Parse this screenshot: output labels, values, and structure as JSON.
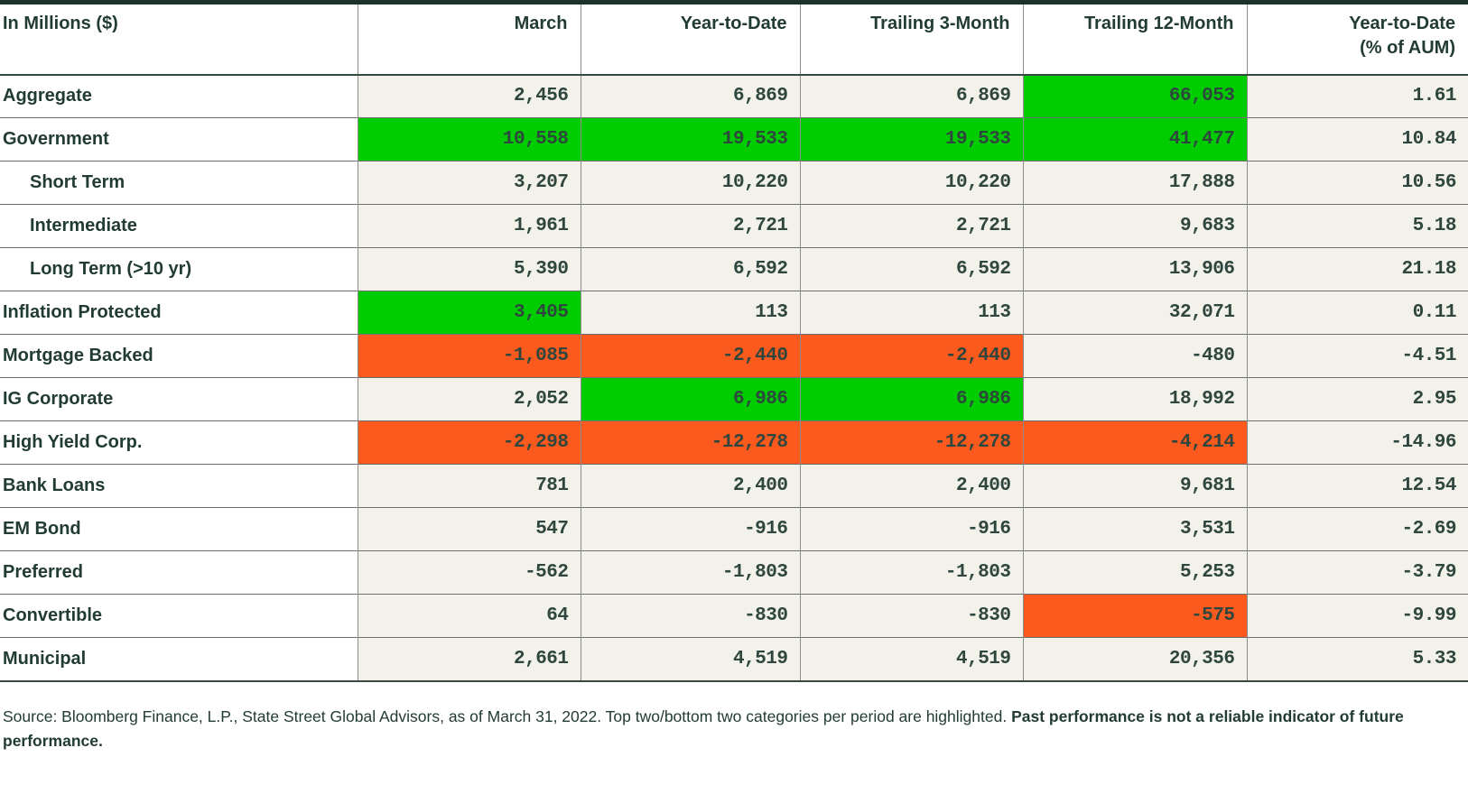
{
  "colors": {
    "highlight_positive_green": "#00CC00",
    "highlight_negative_orange": "#FA5A1E",
    "cell_background": "#F2F1EA",
    "heading_text": "#223C33",
    "number_text": "#2E463D"
  },
  "table": {
    "columns": [
      "In Millions ($)",
      "March",
      "Year-to-Date",
      "Trailing 3-Month",
      "Trailing 12-Month",
      "Year-to-Date\n(% of AUM)"
    ],
    "rows": [
      {
        "label": "Aggregate",
        "indent": false,
        "values": [
          "2,456",
          "6,869",
          "6,869",
          "66,053",
          "1.61"
        ],
        "highlights": [
          null,
          null,
          null,
          "green",
          null
        ]
      },
      {
        "label": "Government",
        "indent": false,
        "values": [
          "10,558",
          "19,533",
          "19,533",
          "41,477",
          "10.84"
        ],
        "highlights": [
          "green",
          "green",
          "green",
          "green",
          null
        ]
      },
      {
        "label": "Short Term",
        "indent": true,
        "values": [
          "3,207",
          "10,220",
          "10,220",
          "17,888",
          "10.56"
        ],
        "highlights": [
          null,
          null,
          null,
          null,
          null
        ]
      },
      {
        "label": "Intermediate",
        "indent": true,
        "values": [
          "1,961",
          "2,721",
          "2,721",
          "9,683",
          "5.18"
        ],
        "highlights": [
          null,
          null,
          null,
          null,
          null
        ]
      },
      {
        "label": "Long Term (>10 yr)",
        "indent": true,
        "values": [
          "5,390",
          "6,592",
          "6,592",
          "13,906",
          "21.18"
        ],
        "highlights": [
          null,
          null,
          null,
          null,
          null
        ]
      },
      {
        "label": "Inflation Protected",
        "indent": false,
        "values": [
          "3,405",
          "113",
          "113",
          "32,071",
          "0.11"
        ],
        "highlights": [
          "green",
          null,
          null,
          null,
          null
        ]
      },
      {
        "label": "Mortgage Backed",
        "indent": false,
        "values": [
          "-1,085",
          "-2,440",
          "-2,440",
          "-480",
          "-4.51"
        ],
        "highlights": [
          "orange",
          "orange",
          "orange",
          null,
          null
        ]
      },
      {
        "label": "IG Corporate",
        "indent": false,
        "values": [
          "2,052",
          "6,986",
          "6,986",
          "18,992",
          "2.95"
        ],
        "highlights": [
          null,
          "green",
          "green",
          null,
          null
        ]
      },
      {
        "label": "High Yield Corp.",
        "indent": false,
        "values": [
          "-2,298",
          "-12,278",
          "-12,278",
          "-4,214",
          "-14.96"
        ],
        "highlights": [
          "orange",
          "orange",
          "orange",
          "orange",
          null
        ]
      },
      {
        "label": "Bank Loans",
        "indent": false,
        "values": [
          "781",
          "2,400",
          "2,400",
          "9,681",
          "12.54"
        ],
        "highlights": [
          null,
          null,
          null,
          null,
          null
        ]
      },
      {
        "label": "EM Bond",
        "indent": false,
        "values": [
          "547",
          "-916",
          "-916",
          "3,531",
          "-2.69"
        ],
        "highlights": [
          null,
          null,
          null,
          null,
          null
        ]
      },
      {
        "label": "Preferred",
        "indent": false,
        "values": [
          "-562",
          "-1,803",
          "-1,803",
          "5,253",
          "-3.79"
        ],
        "highlights": [
          null,
          null,
          null,
          null,
          null
        ]
      },
      {
        "label": "Convertible",
        "indent": false,
        "values": [
          "64",
          "-830",
          "-830",
          "-575",
          "-9.99"
        ],
        "highlights": [
          null,
          null,
          null,
          "orange",
          null
        ]
      },
      {
        "label": "Municipal",
        "indent": false,
        "values": [
          "2,661",
          "4,519",
          "4,519",
          "20,356",
          "5.33"
        ],
        "highlights": [
          null,
          null,
          null,
          null,
          null
        ]
      }
    ]
  },
  "footer": {
    "text_regular": "Source: Bloomberg Finance, L.P., State Street Global Advisors, as of March 31, 2022. Top two/bottom two categories per period are highlighted. ",
    "text_bold": "Past performance is not a reliable indicator of future performance."
  }
}
